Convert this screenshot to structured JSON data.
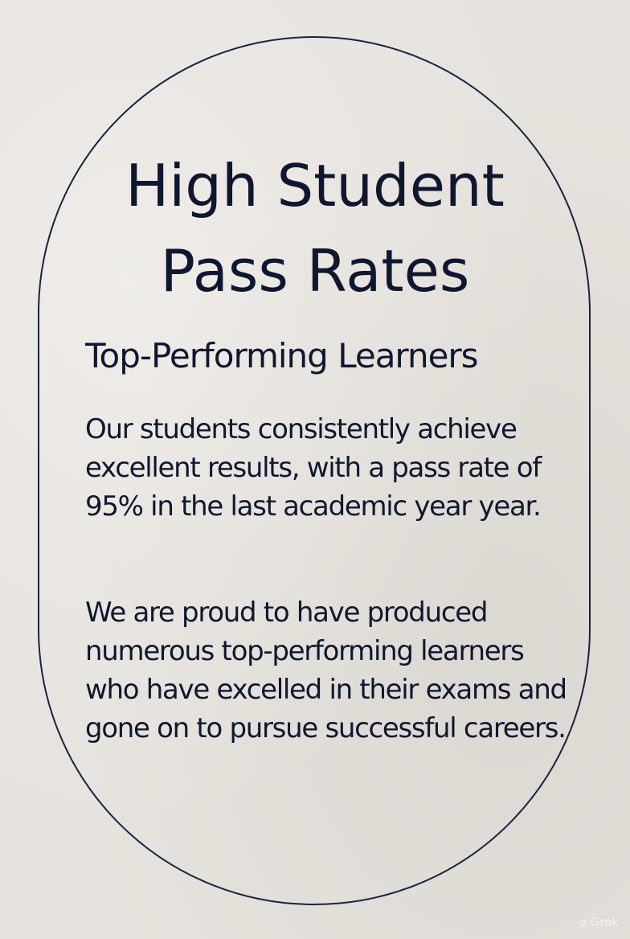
{
  "poster": {
    "title_line1": "High Student",
    "title_line2": "Pass Rates",
    "subtitle": "Top-Performing Learners",
    "paragraph1": "Our students consistently achieve excellent results, with a pass rate of 95% in the last academic year year.",
    "paragraph2": "We are proud to have produced numerous top-performing learners who have excelled in their exams and gone on to pursue successful careers.",
    "watermark": "Grok"
  },
  "colors": {
    "background": "#e6e2dd",
    "text": "#0f1730",
    "border": "#1b2240"
  }
}
